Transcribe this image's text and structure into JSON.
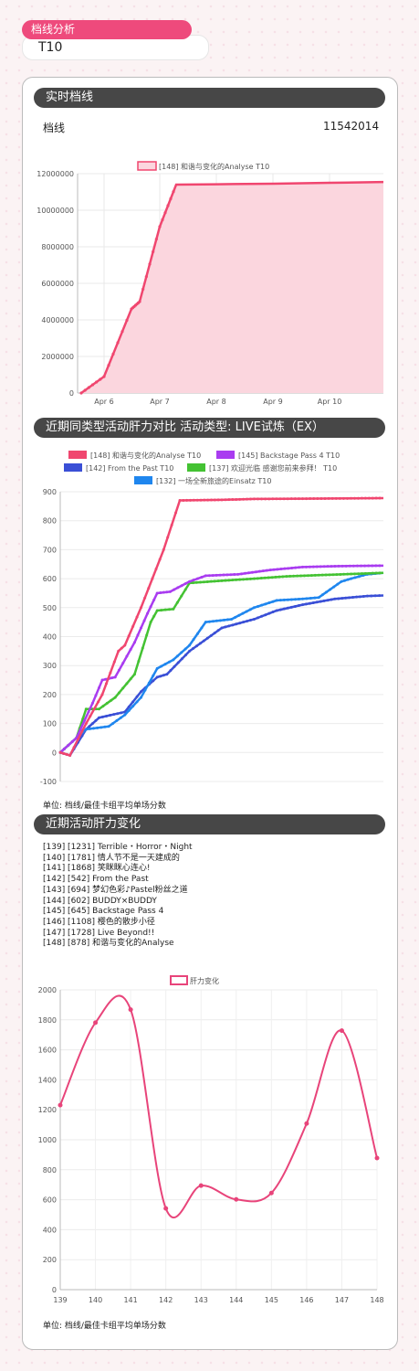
{
  "header": {
    "title": "档线分析",
    "value": "T10"
  },
  "sections": {
    "realtime": "实时档线",
    "compare": "近期同类型活动肝力对比  活动类型: LIVE试炼（EX）",
    "history": "近期活动肝力变化"
  },
  "realtime": {
    "label": "档线",
    "value": "11542014"
  },
  "colors": {
    "pink": "#f0466f",
    "purple": "#a93cf0",
    "green": "#44c233",
    "navy": "#3a4fd6",
    "blue": "#1f86ee"
  },
  "chart_data": [
    {
      "type": "area",
      "legend": "[148] 和谐与变化的Analyse T10",
      "x": [
        "Apr 5 22:00",
        "Apr 6 00:00",
        "Apr 6 12:00",
        "Apr 6 16:00",
        "Apr 7 00:00",
        "Apr 7 06:00",
        "Apr 8 00:00",
        "Apr 9 00:00",
        "Apr 10 00:00",
        "Apr 10 22:00"
      ],
      "series": [
        {
          "name": "[148] 和谐与变化的Analyse T10",
          "values": [
            0,
            900000,
            4600000,
            5000000,
            9100000,
            11400000,
            11420000,
            11450000,
            11500000,
            11542014
          ]
        }
      ],
      "xticks": [
        "Apr 6",
        "Apr 7",
        "Apr 8",
        "Apr 9",
        "Apr 10"
      ],
      "yticks": [
        "0",
        "2000000",
        "4000000",
        "6000000",
        "8000000",
        "10000000",
        "12000000"
      ],
      "ylim": [
        0,
        12000000
      ]
    },
    {
      "type": "line",
      "legend": [
        "[148] 和谐与变化的Analyse T10",
        "[145] Backstage Pass 4 T10",
        "[142] From the Past T10",
        "[137] 欢迎光临 感谢您前来参拜！ T10",
        "[132] 一场全新旅途的Einsatz T10"
      ],
      "series": [
        {
          "name": "[148] 和谐与变化的Analyse T10",
          "values": [
            [
              0,
              0
            ],
            [
              0.03,
              -10
            ],
            [
              0.08,
              100
            ],
            [
              0.13,
              200
            ],
            [
              0.18,
              350
            ],
            [
              0.2,
              370
            ],
            [
              0.25,
              500
            ],
            [
              0.32,
              700
            ],
            [
              0.37,
              870
            ],
            [
              0.5,
              872
            ],
            [
              0.6,
              875
            ],
            [
              0.75,
              876
            ],
            [
              0.9,
              877
            ],
            [
              1,
              878
            ]
          ]
        },
        {
          "name": "[145] Backstage Pass 4 T10",
          "values": [
            [
              0,
              0
            ],
            [
              0.05,
              50
            ],
            [
              0.1,
              170
            ],
            [
              0.13,
              250
            ],
            [
              0.17,
              260
            ],
            [
              0.23,
              380
            ],
            [
              0.27,
              480
            ],
            [
              0.3,
              550
            ],
            [
              0.34,
              555
            ],
            [
              0.4,
              590
            ],
            [
              0.45,
              610
            ],
            [
              0.55,
              615
            ],
            [
              0.65,
              630
            ],
            [
              0.75,
              640
            ],
            [
              0.85,
              643
            ],
            [
              1,
              645
            ]
          ]
        },
        {
          "name": "[142] From the Past T10",
          "values": [
            [
              0,
              0
            ],
            [
              0.03,
              -10
            ],
            [
              0.08,
              80
            ],
            [
              0.12,
              120
            ],
            [
              0.2,
              140
            ],
            [
              0.25,
              210
            ],
            [
              0.3,
              260
            ],
            [
              0.33,
              270
            ],
            [
              0.4,
              350
            ],
            [
              0.5,
              430
            ],
            [
              0.6,
              460
            ],
            [
              0.67,
              490
            ],
            [
              0.75,
              510
            ],
            [
              0.85,
              530
            ],
            [
              0.95,
              540
            ],
            [
              1,
              542
            ]
          ]
        },
        {
          "name": "[137] 欢迎光临 感谢您前来参拜！ T10",
          "values": [
            [
              0,
              0
            ],
            [
              0.05,
              50
            ],
            [
              0.08,
              150
            ],
            [
              0.12,
              150
            ],
            [
              0.17,
              190
            ],
            [
              0.23,
              270
            ],
            [
              0.28,
              450
            ],
            [
              0.3,
              490
            ],
            [
              0.35,
              495
            ],
            [
              0.4,
              585
            ],
            [
              0.5,
              593
            ],
            [
              0.6,
              600
            ],
            [
              0.7,
              608
            ],
            [
              0.8,
              612
            ],
            [
              0.9,
              616
            ],
            [
              1,
              620
            ]
          ]
        },
        {
          "name": "[132] 一场全新旅途的Einsatz T10",
          "values": [
            [
              0,
              0
            ],
            [
              0.05,
              50
            ],
            [
              0.08,
              80
            ],
            [
              0.15,
              90
            ],
            [
              0.2,
              130
            ],
            [
              0.25,
              190
            ],
            [
              0.3,
              290
            ],
            [
              0.35,
              320
            ],
            [
              0.4,
              370
            ],
            [
              0.45,
              450
            ],
            [
              0.53,
              460
            ],
            [
              0.6,
              500
            ],
            [
              0.67,
              525
            ],
            [
              0.75,
              530
            ],
            [
              0.8,
              535
            ],
            [
              0.87,
              590
            ],
            [
              0.9,
              600
            ],
            [
              0.95,
              615
            ],
            [
              1,
              620
            ]
          ]
        }
      ],
      "yticks": [
        "-100",
        "0",
        "100",
        "200",
        "300",
        "400",
        "500",
        "600",
        "700",
        "800",
        "900"
      ],
      "ylim": [
        -100,
        900
      ],
      "unit": "单位: 档线/最佳卡组平均单场分数"
    },
    {
      "type": "line",
      "legend": "肝力变化",
      "categories": [
        "139",
        "140",
        "141",
        "142",
        "143",
        "144",
        "145",
        "146",
        "147",
        "148"
      ],
      "series": [
        {
          "name": "肝力变化",
          "values": [
            1231,
            1781,
            1868,
            542,
            694,
            602,
            645,
            1108,
            1728,
            878
          ]
        }
      ],
      "yticks": [
        "0",
        "200",
        "400",
        "600",
        "800",
        "1000",
        "1200",
        "1400",
        "1600",
        "1800",
        "2000"
      ],
      "ylim": [
        0,
        2000
      ],
      "unit": "单位: 档线/最佳卡组平均单场分数"
    }
  ],
  "events": [
    "[139] [1231] Terrible・Horror・Night",
    "[140] [1781] 情人节不是一天建成的",
    "[141] [1868] 笑眯眯心连心!",
    "[142] [542] From the Past",
    "[143] [694] 梦幻色彩♪Pastel粉丝之道",
    "[144] [602] BUDDY×BUDDY",
    "[145] [645] Backstage Pass 4",
    "[146] [1108] 樱色的散步小径",
    "[147] [1728] Live Beyond!!",
    "[148] [878] 和谐与变化的Analyse"
  ]
}
